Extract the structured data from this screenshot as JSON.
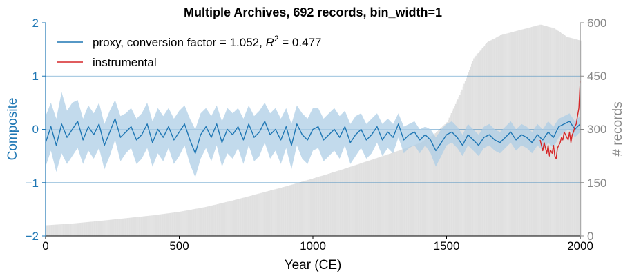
{
  "chart_data": {
    "type": "line",
    "title": "Multiple Archives, 692 records, bin_width=1",
    "xlabel": "Year (CE)",
    "ylabel": "Composite",
    "y2label": "# records",
    "xlim": [
      0,
      2000
    ],
    "ylim": [
      -2,
      2
    ],
    "y2lim": [
      0,
      600
    ],
    "xticks": [
      "0",
      "500",
      "1000",
      "1500",
      "2000"
    ],
    "yticks": [
      "−2",
      "−1",
      "0",
      "1",
      "2"
    ],
    "y2ticks": [
      "0",
      "150",
      "300",
      "450",
      "600"
    ],
    "gridlines_y": [
      -1,
      0,
      1
    ],
    "legend_position": "top-left",
    "series": [
      {
        "name": "proxy, conversion factor = 1.052, R² = 0.477",
        "legend_text": "proxy, conversion factor = 1.052,",
        "legend_r": "R",
        "legend_sup": "2",
        "legend_tail": " = 0.477",
        "color": "#1f77b4",
        "band_color": "#aecde6",
        "x": [
          0,
          20,
          40,
          60,
          80,
          100,
          120,
          140,
          160,
          180,
          200,
          220,
          240,
          260,
          280,
          300,
          320,
          340,
          360,
          380,
          400,
          420,
          440,
          460,
          480,
          500,
          520,
          540,
          560,
          580,
          600,
          620,
          640,
          660,
          680,
          700,
          720,
          740,
          760,
          780,
          800,
          820,
          840,
          860,
          880,
          900,
          920,
          940,
          960,
          980,
          1000,
          1020,
          1040,
          1060,
          1080,
          1100,
          1120,
          1140,
          1160,
          1180,
          1200,
          1220,
          1240,
          1260,
          1280,
          1300,
          1320,
          1340,
          1360,
          1380,
          1400,
          1420,
          1440,
          1460,
          1480,
          1500,
          1520,
          1540,
          1560,
          1580,
          1600,
          1620,
          1640,
          1660,
          1680,
          1700,
          1720,
          1740,
          1760,
          1780,
          1800,
          1820,
          1840,
          1860,
          1880,
          1900,
          1920,
          1940,
          1960,
          1980,
          2000
        ],
        "y": [
          -0.25,
          0.05,
          -0.3,
          0.1,
          -0.15,
          0.0,
          0.15,
          -0.2,
          0.05,
          -0.1,
          0.1,
          -0.3,
          -0.05,
          0.2,
          -0.15,
          -0.05,
          0.05,
          -0.2,
          -0.1,
          0.1,
          -0.25,
          0.0,
          -0.15,
          0.05,
          -0.2,
          -0.05,
          0.1,
          -0.2,
          -0.45,
          -0.1,
          0.05,
          -0.15,
          0.1,
          -0.25,
          0.0,
          -0.1,
          0.05,
          -0.2,
          0.1,
          -0.15,
          -0.05,
          0.15,
          -0.1,
          0.0,
          -0.2,
          0.05,
          -0.3,
          0.1,
          -0.1,
          -0.2,
          0.0,
          0.05,
          -0.2,
          -0.1,
          0.0,
          -0.15,
          0.05,
          -0.25,
          -0.1,
          0.0,
          -0.2,
          -0.1,
          0.05,
          -0.2,
          -0.05,
          -0.15,
          0.1,
          -0.2,
          -0.1,
          -0.05,
          -0.2,
          -0.1,
          -0.2,
          -0.4,
          -0.25,
          -0.1,
          -0.05,
          -0.15,
          -0.3,
          -0.1,
          -0.2,
          -0.3,
          -0.15,
          -0.1,
          -0.2,
          -0.25,
          -0.15,
          -0.05,
          -0.2,
          -0.1,
          -0.15,
          -0.25,
          -0.1,
          -0.2,
          -0.05,
          -0.15,
          0.05,
          0.1,
          0.15,
          0.0,
          0.1
        ],
        "upper": [
          0.25,
          0.5,
          0.2,
          0.7,
          0.35,
          0.5,
          0.55,
          0.2,
          0.45,
          0.3,
          0.5,
          0.1,
          0.35,
          0.55,
          0.25,
          0.3,
          0.4,
          0.2,
          0.3,
          0.5,
          0.15,
          0.4,
          0.25,
          0.4,
          0.2,
          0.35,
          0.45,
          0.2,
          0.0,
          0.3,
          0.4,
          0.25,
          0.45,
          0.15,
          0.4,
          0.3,
          0.4,
          0.2,
          0.45,
          0.25,
          0.35,
          0.5,
          0.3,
          0.4,
          0.2,
          0.4,
          0.1,
          0.45,
          0.3,
          0.2,
          0.4,
          0.4,
          0.2,
          0.3,
          0.4,
          0.25,
          0.35,
          0.1,
          0.25,
          0.3,
          0.1,
          0.2,
          0.3,
          0.1,
          0.2,
          0.1,
          0.3,
          0.05,
          0.1,
          0.15,
          0.0,
          0.05,
          0.0,
          -0.15,
          0.0,
          0.1,
          0.15,
          0.05,
          -0.1,
          0.1,
          0.0,
          -0.1,
          0.05,
          0.1,
          0.0,
          -0.05,
          0.05,
          0.15,
          0.0,
          0.1,
          0.05,
          -0.05,
          0.1,
          0.0,
          0.15,
          0.05,
          0.2,
          0.25,
          0.3,
          0.15,
          0.25
        ],
        "lower": [
          -0.7,
          -0.4,
          -0.8,
          -0.45,
          -0.65,
          -0.5,
          -0.35,
          -0.65,
          -0.4,
          -0.55,
          -0.35,
          -0.75,
          -0.5,
          -0.2,
          -0.6,
          -0.45,
          -0.35,
          -0.65,
          -0.55,
          -0.35,
          -0.7,
          -0.45,
          -0.6,
          -0.35,
          -0.65,
          -0.5,
          -0.3,
          -0.65,
          -0.9,
          -0.55,
          -0.35,
          -0.6,
          -0.3,
          -0.7,
          -0.45,
          -0.55,
          -0.35,
          -0.65,
          -0.3,
          -0.6,
          -0.5,
          -0.25,
          -0.55,
          -0.4,
          -0.65,
          -0.35,
          -0.75,
          -0.3,
          -0.55,
          -0.65,
          -0.4,
          -0.35,
          -0.6,
          -0.5,
          -0.4,
          -0.55,
          -0.3,
          -0.65,
          -0.5,
          -0.35,
          -0.55,
          -0.45,
          -0.25,
          -0.5,
          -0.35,
          -0.45,
          -0.15,
          -0.45,
          -0.35,
          -0.3,
          -0.45,
          -0.3,
          -0.45,
          -0.7,
          -0.5,
          -0.3,
          -0.25,
          -0.35,
          -0.5,
          -0.3,
          -0.4,
          -0.5,
          -0.35,
          -0.3,
          -0.4,
          -0.45,
          -0.35,
          -0.25,
          -0.4,
          -0.3,
          -0.35,
          -0.45,
          -0.3,
          -0.4,
          -0.25,
          -0.35,
          -0.15,
          -0.05,
          0.0,
          -0.15,
          -0.05
        ]
      },
      {
        "name": "instrumental",
        "color": "#d62728",
        "x": [
          1850,
          1855,
          1860,
          1865,
          1870,
          1875,
          1880,
          1885,
          1890,
          1895,
          1900,
          1905,
          1910,
          1915,
          1920,
          1925,
          1930,
          1935,
          1940,
          1945,
          1950,
          1955,
          1960,
          1965,
          1970,
          1975,
          1980,
          1985,
          1990,
          1995,
          2000
        ],
        "y": [
          -0.2,
          -0.3,
          -0.4,
          -0.25,
          -0.35,
          -0.45,
          -0.3,
          -0.5,
          -0.4,
          -0.45,
          -0.3,
          -0.5,
          -0.55,
          -0.35,
          -0.3,
          -0.25,
          -0.15,
          -0.2,
          -0.05,
          -0.1,
          -0.15,
          -0.2,
          -0.05,
          -0.25,
          -0.1,
          -0.05,
          0.05,
          0.1,
          0.25,
          0.4,
          0.9
        ]
      }
    ],
    "records": {
      "name": "# records",
      "color": "#e0e0e0",
      "x": [
        0,
        100,
        200,
        300,
        400,
        500,
        600,
        700,
        800,
        900,
        1000,
        1100,
        1200,
        1300,
        1400,
        1450,
        1500,
        1550,
        1600,
        1650,
        1700,
        1750,
        1800,
        1850,
        1900,
        1950,
        2000
      ],
      "values": [
        30,
        35,
        42,
        50,
        58,
        68,
        82,
        100,
        120,
        140,
        162,
        185,
        210,
        235,
        262,
        285,
        320,
        400,
        500,
        545,
        565,
        575,
        585,
        595,
        585,
        560,
        550
      ]
    }
  }
}
